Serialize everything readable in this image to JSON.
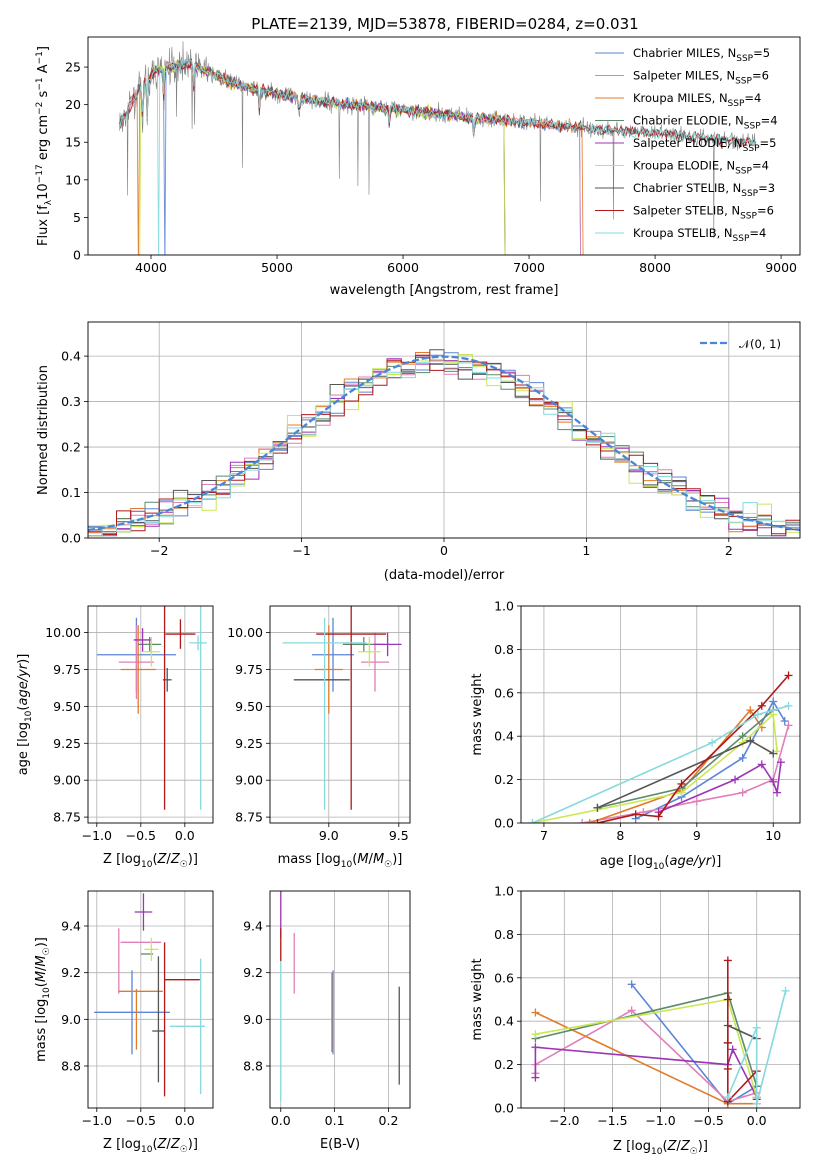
{
  "title": "PLATE=2139, MJD=53878, FIBERID=0284, z=0.031",
  "colors": {
    "Chabrier MILES": "#5b85d6",
    "Salpeter MILES": "#e07fb8",
    "Kroupa MILES": "#e07b2a",
    "Chabrier ELODIE": "#5e8a6a",
    "Salpeter ELODIE": "#9b35b5",
    "Kroupa ELODIE": "#c9e852",
    "Chabrier STELIB": "#555555",
    "Salpeter STELIB": "#b01919",
    "Kroupa STELIB": "#86d9dc",
    "data": "#808080",
    "gauss": "#4a86d8"
  },
  "chart_data": [
    {
      "id": "spectrum",
      "type": "line",
      "xlabel": "wavelength [Angstrom, rest frame]",
      "ylabel": "Flux [f_λ10^-17 erg cm^-2 s^-1 A^-1]",
      "xlim": [
        3500,
        9150
      ],
      "ylim": [
        0,
        29
      ],
      "xticks": [
        4000,
        5000,
        6000,
        7000,
        8000,
        9000
      ],
      "yticks": [
        0,
        5,
        10,
        15,
        20,
        25
      ],
      "legend_position": "top-right",
      "legend": [
        "Chabrier MILES, N_SSP=5",
        "Salpeter MILES, N_SSP=6",
        "Kroupa MILES, N_SSP=4",
        "Chabrier ELODIE, N_SSP=4",
        "Salpeter ELODIE, N_SSP=5",
        "Kroupa ELODIE, N_SSP=4",
        "Chabrier STELIB, N_SSP=3",
        "Salpeter STELIB, N_SSP=6",
        "Kroupa STELIB, N_SSP=4"
      ],
      "continuum": [
        [
          3750,
          17
        ],
        [
          3850,
          20.5
        ],
        [
          3950,
          23
        ],
        [
          4050,
          24.5
        ],
        [
          4150,
          25
        ],
        [
          4300,
          25.5
        ],
        [
          4500,
          24
        ],
        [
          4700,
          22.5
        ],
        [
          5000,
          21.5
        ],
        [
          5300,
          20.5
        ],
        [
          5600,
          20
        ],
        [
          6000,
          19.3
        ],
        [
          6500,
          18.4
        ],
        [
          7000,
          17.6
        ],
        [
          7500,
          16.8
        ],
        [
          8000,
          16.2
        ],
        [
          8500,
          15.4
        ],
        [
          8800,
          15
        ]
      ],
      "model_ranges": {
        "Chabrier MILES": [
          3750,
          7400
        ],
        "Salpeter MILES": [
          3750,
          7400
        ],
        "Kroupa MILES": [
          3750,
          7420
        ],
        "Chabrier ELODIE": [
          3900,
          6800
        ],
        "Salpeter ELODIE": [
          3900,
          6800
        ],
        "Kroupa ELODIE": [
          3900,
          6800
        ],
        "Chabrier STELIB": [
          3750,
          8800
        ],
        "Salpeter STELIB": [
          3750,
          8800
        ],
        "Kroupa STELIB": [
          3750,
          8800
        ]
      }
    },
    {
      "id": "residuals",
      "type": "histogram",
      "xlabel": "(data-model)/error",
      "ylabel": "Normed distribution",
      "xlim": [
        -2.5,
        2.5
      ],
      "ylim": [
        0,
        0.475
      ],
      "xticks": [
        -2,
        -1,
        0,
        1,
        2
      ],
      "yticks": [
        0.0,
        0.1,
        0.2,
        0.3,
        0.4
      ],
      "grid": true,
      "legend_position": "top-right",
      "legend": [
        "𝒩(0, 1)"
      ]
    },
    {
      "id": "age-vs-Z",
      "type": "errorbar",
      "xlabel": "Z [log10(Z/Z☉)]",
      "ylabel": "age  [log10(age/yr)]",
      "xlim": [
        -1.1,
        0.32
      ],
      "ylim": [
        8.71,
        10.18
      ],
      "xticks": [
        -1.0,
        -0.5,
        0.0
      ],
      "yticks": [
        8.75,
        9.0,
        9.25,
        9.5,
        9.75,
        10.0
      ],
      "grid": true,
      "points": [
        {
          "model": "Chabrier MILES",
          "x": -0.55,
          "xerr": 0.45,
          "y": 9.85,
          "yerr": 0.25
        },
        {
          "model": "Salpeter MILES",
          "x": -0.55,
          "xerr": 0.2,
          "y": 9.8,
          "yerr": 0.25
        },
        {
          "model": "Kroupa MILES",
          "x": -0.53,
          "xerr": 0.2,
          "y": 9.75,
          "yerr": 0.3
        },
        {
          "model": "Chabrier ELODIE",
          "x": -0.4,
          "xerr": 0.13,
          "y": 9.92,
          "yerr": 0.05
        },
        {
          "model": "Salpeter ELODIE",
          "x": -0.48,
          "xerr": 0.1,
          "y": 9.95,
          "yerr": 0.08
        },
        {
          "model": "Kroupa ELODIE",
          "x": -0.38,
          "xerr": 0.1,
          "y": 9.87,
          "yerr": 0.1
        },
        {
          "model": "Chabrier STELIB",
          "x": -0.2,
          "xerr": 0.05,
          "y": 9.68,
          "yerr": 0.08
        },
        {
          "model": "Salpeter STELIB",
          "x": -0.05,
          "xerr": 0.17,
          "y": 9.99,
          "yerr": 0.1
        },
        {
          "model": "Salpeter STELIB",
          "x": -0.23,
          "xerr": 0.0,
          "y": 9.5,
          "yerr": 0.7
        },
        {
          "model": "Kroupa STELIB",
          "x": 0.15,
          "xerr": 0.1,
          "y": 9.93,
          "yerr": 0.05
        },
        {
          "model": "Kroupa STELIB",
          "x": 0.18,
          "xerr": 0.0,
          "y": 9.5,
          "yerr": 0.7
        }
      ]
    },
    {
      "id": "age-vs-mass",
      "type": "errorbar",
      "xlabel": "mass [log10(M/M☉)]",
      "xlim": [
        8.58,
        9.58
      ],
      "ylim": [
        8.71,
        10.18
      ],
      "xticks": [
        9.0,
        9.5
      ],
      "yticks": [
        8.75,
        9.0,
        9.25,
        9.5,
        9.75,
        10.0
      ],
      "grid": true,
      "points": [
        {
          "model": "Chabrier MILES",
          "x": 9.03,
          "xerr": 0.15,
          "y": 9.85,
          "yerr": 0.25
        },
        {
          "model": "Salpeter MILES",
          "x": 9.33,
          "xerr": 0.1,
          "y": 9.8,
          "yerr": 0.2
        },
        {
          "model": "Kroupa MILES",
          "x": 9.0,
          "xerr": 0.1,
          "y": 9.75,
          "yerr": 0.3
        },
        {
          "model": "Chabrier ELODIE",
          "x": 9.25,
          "xerr": 0.15,
          "y": 9.92,
          "yerr": 0.05
        },
        {
          "model": "Salpeter ELODIE",
          "x": 9.42,
          "xerr": 0.1,
          "y": 9.92,
          "yerr": 0.08
        },
        {
          "model": "Kroupa ELODIE",
          "x": 9.29,
          "xerr": 0.08,
          "y": 9.87,
          "yerr": 0.1
        },
        {
          "model": "Chabrier STELIB",
          "x": 8.95,
          "xerr": 0.2,
          "y": 9.68,
          "yerr": 0.0
        },
        {
          "model": "Salpeter STELIB",
          "x": 9.16,
          "xerr": 0.25,
          "y": 9.99,
          "yerr": 0.0
        },
        {
          "model": "Salpeter STELIB",
          "x": 9.16,
          "xerr": 0.0,
          "y": 9.5,
          "yerr": 0.7
        },
        {
          "model": "Kroupa STELIB",
          "x": 8.97,
          "xerr": 0.3,
          "y": 9.93,
          "yerr": 0.0
        },
        {
          "model": "Kroupa STELIB",
          "x": 8.97,
          "xerr": 0.0,
          "y": 9.45,
          "yerr": 0.65
        }
      ]
    },
    {
      "id": "weight-vs-age",
      "type": "line",
      "xlabel": "age  [log10(age/yr)]",
      "ylabel": "mass weight",
      "xlim": [
        6.7,
        10.35
      ],
      "ylim": [
        0,
        1
      ],
      "xticks": [
        7,
        8,
        9,
        10
      ],
      "yticks": [
        0.0,
        0.2,
        0.4,
        0.6,
        0.8,
        1.0
      ],
      "grid": true,
      "series": [
        {
          "model": "Chabrier MILES",
          "x": [
            8.2,
            8.8,
            9.6,
            10.0,
            10.15
          ],
          "y": [
            0.02,
            0.12,
            0.3,
            0.56,
            0.47
          ]
        },
        {
          "model": "Salpeter MILES",
          "x": [
            7.5,
            8.3,
            9.0,
            9.6,
            10.0,
            10.2
          ],
          "y": [
            0.0,
            0.05,
            0.1,
            0.14,
            0.2,
            0.45
          ]
        },
        {
          "model": "Kroupa MILES",
          "x": [
            7.6,
            8.8,
            9.7,
            9.85
          ],
          "y": [
            0.0,
            0.15,
            0.52,
            0.44
          ]
        },
        {
          "model": "Chabrier ELODIE",
          "x": [
            7.7,
            8.8,
            9.6,
            10.0
          ],
          "y": [
            0.07,
            0.16,
            0.4,
            0.52
          ]
        },
        {
          "model": "Salpeter ELODIE",
          "x": [
            8.5,
            9.5,
            9.85,
            10.0,
            10.05,
            10.1
          ],
          "y": [
            0.05,
            0.2,
            0.27,
            0.19,
            0.14,
            0.28
          ]
        },
        {
          "model": "Kroupa ELODIE",
          "x": [
            6.85,
            8.8,
            9.6,
            10.0,
            10.05
          ],
          "y": [
            0.0,
            0.14,
            0.37,
            0.5,
            0.33
          ]
        },
        {
          "model": "Chabrier STELIB",
          "x": [
            7.7,
            9.7,
            10.0
          ],
          "y": [
            0.07,
            0.38,
            0.32
          ]
        },
        {
          "model": "Salpeter STELIB",
          "x": [
            7.7,
            8.2,
            8.5,
            8.8,
            9.85,
            10.2
          ],
          "y": [
            0.0,
            0.04,
            0.03,
            0.18,
            0.54,
            0.68
          ]
        },
        {
          "model": "Kroupa STELIB",
          "x": [
            6.85,
            9.2,
            9.8,
            10.2
          ],
          "y": [
            0.0,
            0.37,
            0.5,
            0.54
          ]
        }
      ]
    },
    {
      "id": "mass-vs-Z",
      "type": "errorbar",
      "xlabel": "Z [log10(Z/Z☉)]",
      "ylabel": "mass [log10(M/M☉)]",
      "xlim": [
        -1.1,
        0.32
      ],
      "ylim": [
        8.62,
        9.55
      ],
      "xticks": [
        -1.0,
        -0.5,
        0.0
      ],
      "yticks": [
        8.8,
        9.0,
        9.2,
        9.4
      ],
      "grid": true,
      "points": [
        {
          "model": "Chabrier MILES",
          "x": -0.6,
          "xerr": 0.43,
          "y": 9.03,
          "yerr": 0.18
        },
        {
          "model": "Salpeter MILES",
          "x": -0.5,
          "xerr": 0.23,
          "y": 9.33,
          "yerr": 0.0
        },
        {
          "model": "Salpeter MILES",
          "x": -0.75,
          "xerr": 0.0,
          "y": 9.25,
          "yerr": 0.14
        },
        {
          "model": "Kroupa MILES",
          "x": -0.5,
          "xerr": 0.25,
          "y": 9.12,
          "yerr": 0.0
        },
        {
          "model": "Kroupa MILES",
          "x": -0.55,
          "xerr": 0.0,
          "y": 9.0,
          "yerr": 0.13
        },
        {
          "model": "Chabrier ELODIE",
          "x": -0.43,
          "xerr": 0.07,
          "y": 9.28,
          "yerr": 0.0
        },
        {
          "model": "Salpeter ELODIE",
          "x": -0.47,
          "xerr": 0.1,
          "y": 9.46,
          "yerr": 0.08
        },
        {
          "model": "Kroupa ELODIE",
          "x": -0.38,
          "xerr": 0.08,
          "y": 9.3,
          "yerr": 0.05
        },
        {
          "model": "Chabrier STELIB",
          "x": -0.3,
          "xerr": 0.07,
          "y": 8.95,
          "yerr": 0.0
        },
        {
          "model": "Chabrier STELIB",
          "x": -0.3,
          "xerr": 0.0,
          "y": 9.0,
          "yerr": 0.27
        },
        {
          "model": "Salpeter STELIB",
          "x": -0.03,
          "xerr": 0.2,
          "y": 9.17,
          "yerr": 0.0
        },
        {
          "model": "Salpeter STELIB",
          "x": -0.23,
          "xerr": 0.0,
          "y": 9.0,
          "yerr": 0.33
        },
        {
          "model": "Kroupa STELIB",
          "x": 0.03,
          "xerr": 0.2,
          "y": 8.97,
          "yerr": 0.0
        },
        {
          "model": "Kroupa STELIB",
          "x": 0.18,
          "xerr": 0.0,
          "y": 8.97,
          "yerr": 0.29
        }
      ]
    },
    {
      "id": "mass-vs-EBV",
      "type": "errorbar",
      "xlabel": "E(B-V)",
      "xlim": [
        -0.02,
        0.24
      ],
      "ylim": [
        8.62,
        9.55
      ],
      "xticks": [
        0.0,
        0.1,
        0.2
      ],
      "yticks": [
        8.8,
        9.0,
        9.2,
        9.4
      ],
      "grid": true,
      "points": [
        {
          "model": "Salpeter ELODIE",
          "x": 0.0,
          "xerr": 0.0,
          "y": 9.45,
          "yerr": 0.1
        },
        {
          "model": "Salpeter STELIB",
          "x": 0.0,
          "xerr": 0.0,
          "y": 9.32,
          "yerr": 0.07
        },
        {
          "model": "Kroupa STELIB",
          "x": 0.0,
          "xerr": 0.0,
          "y": 8.95,
          "yerr": 0.3
        },
        {
          "model": "Salpeter MILES",
          "x": 0.025,
          "xerr": 0.0,
          "y": 9.24,
          "yerr": 0.13
        },
        {
          "model": "Kroupa MILES",
          "x": 0.095,
          "xerr": 0.0,
          "y": 9.03,
          "yerr": 0.17
        },
        {
          "model": "Chabrier MILES",
          "x": 0.097,
          "xerr": 0.0,
          "y": 9.03,
          "yerr": 0.18
        },
        {
          "model": "Chabrier STELIB",
          "x": 0.22,
          "xerr": 0.0,
          "y": 8.93,
          "yerr": 0.21
        }
      ]
    },
    {
      "id": "weight-vs-Z",
      "type": "line",
      "xlabel": "Z [log10(Z/Z☉)]",
      "ylabel": "mass weight",
      "xlim": [
        -2.45,
        0.45
      ],
      "ylim": [
        0,
        1
      ],
      "xticks": [
        -2.0,
        -1.5,
        -1.0,
        -0.5,
        0.0
      ],
      "yticks": [
        0.0,
        0.2,
        0.4,
        0.6,
        0.8,
        1.0
      ],
      "grid": true,
      "series": [
        {
          "model": "Chabrier MILES",
          "x": [
            -1.3,
            -0.3,
            0.0,
            0.0
          ],
          "y": [
            0.57,
            0.02,
            0.1,
            0.05
          ]
        },
        {
          "model": "Salpeter MILES",
          "x": [
            -2.3,
            -2.3,
            -1.3,
            -0.3,
            0.0
          ],
          "y": [
            0.16,
            0.2,
            0.45,
            0.03,
            0.07
          ]
        },
        {
          "model": "Kroupa MILES",
          "x": [
            -2.3,
            -0.3,
            0.0
          ],
          "y": [
            0.44,
            0.02,
            0.02
          ]
        },
        {
          "model": "Chabrier ELODIE",
          "x": [
            -2.3,
            -0.3,
            0.0
          ],
          "y": [
            0.32,
            0.53,
            0.1
          ]
        },
        {
          "model": "Salpeter ELODIE",
          "x": [
            -2.3,
            -2.3,
            -0.3,
            -0.25,
            0.0
          ],
          "y": [
            0.14,
            0.28,
            0.2,
            0.27,
            0.05
          ]
        },
        {
          "model": "Kroupa ELODIE",
          "x": [
            -2.3,
            -0.3,
            0.0
          ],
          "y": [
            0.34,
            0.5,
            0.05
          ]
        },
        {
          "model": "Chabrier STELIB",
          "x": [
            -0.3,
            -0.3,
            0.0
          ],
          "y": [
            0.3,
            0.38,
            0.32
          ]
        },
        {
          "model": "Salpeter STELIB",
          "x": [
            -0.3,
            -0.3,
            -0.3,
            -0.3,
            -0.3,
            0.0,
            0.0
          ],
          "y": [
            0.68,
            0.5,
            0.3,
            0.18,
            0.03,
            0.17,
            0.04
          ]
        },
        {
          "model": "Kroupa STELIB",
          "x": [
            -0.3,
            0.0,
            0.0,
            0.3
          ],
          "y": [
            0.05,
            0.37,
            0.02,
            0.54
          ]
        }
      ]
    }
  ]
}
